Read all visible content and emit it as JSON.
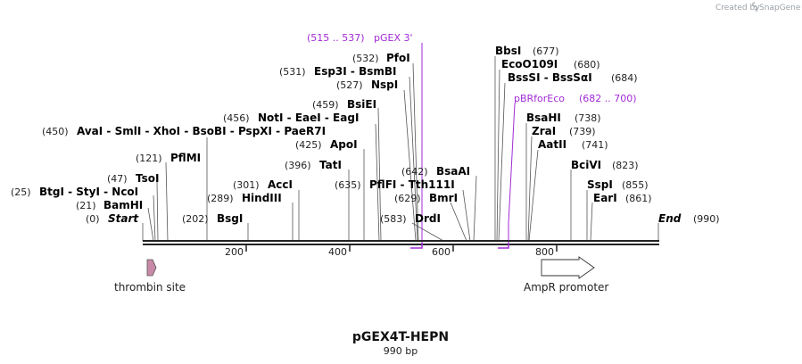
{
  "credit": {
    "text": "Created by",
    "brand": "SnapGene"
  },
  "map": {
    "title": "pGEX4T-HEPN",
    "length_label": "990 bp",
    "ticks": [
      "200",
      "400",
      "600",
      "800"
    ]
  },
  "sites": [
    {
      "name": "Start",
      "pos": "(0)",
      "italic": true
    },
    {
      "name": "BamHI",
      "pos": "(21)"
    },
    {
      "name": "BtgI - StyI - NcoI",
      "pos": "(25)"
    },
    {
      "name": "TsoI",
      "pos": "(47)"
    },
    {
      "name": "PflMI",
      "pos": "(121)"
    },
    {
      "name": "AvaI - SmlI - XhoI - BsoBI - PspXI - PaeR7I",
      "pos": "(450)"
    },
    {
      "name": "BsgI",
      "pos": "(202)"
    },
    {
      "name": "HindIII",
      "pos": "(289)"
    },
    {
      "name": "AccI",
      "pos": "(301)"
    },
    {
      "name": "TatI",
      "pos": "(396)"
    },
    {
      "name": "ApoI",
      "pos": "(425)"
    },
    {
      "name": "NotI - EaeI - EagI",
      "pos": "(456)"
    },
    {
      "name": "BsiEI",
      "pos": "(459)"
    },
    {
      "name": "NspI",
      "pos": "(527)"
    },
    {
      "name": "Esp3I - BsmBI",
      "pos": "(531)"
    },
    {
      "name": "PfoI",
      "pos": "(532)"
    },
    {
      "name": "PflFI - Tth111I",
      "pos": "(635)"
    },
    {
      "name": "DrdI",
      "pos": "(583)"
    },
    {
      "name": "BmrI",
      "pos": "(629)"
    },
    {
      "name": "BsaAI",
      "pos": "(642)"
    },
    {
      "name": "BbsI",
      "pos": "(677)"
    },
    {
      "name": "EcoO109I",
      "pos": "(680)"
    },
    {
      "name": "BssSI - BssSαI",
      "pos": "(684)"
    },
    {
      "name": "BsaHI",
      "pos": "(738)"
    },
    {
      "name": "ZraI",
      "pos": "(739)"
    },
    {
      "name": "AatII",
      "pos": "(741)"
    },
    {
      "name": "BciVI",
      "pos": "(823)"
    },
    {
      "name": "SspI",
      "pos": "(855)"
    },
    {
      "name": "EarI",
      "pos": "(861)"
    },
    {
      "name": "End",
      "pos": "(990)",
      "italic": true
    }
  ],
  "primers": [
    {
      "name": "pGEX 3'",
      "range": "(515 .. 537)"
    },
    {
      "name": "pBRforEco",
      "range": "(682 .. 700)"
    }
  ],
  "features": [
    {
      "name": "thrombin site"
    },
    {
      "name": "AmpR promoter"
    }
  ],
  "colors": {
    "primer": "#a22bd6",
    "thrombin": "#c98aa8",
    "line": "#222222"
  }
}
